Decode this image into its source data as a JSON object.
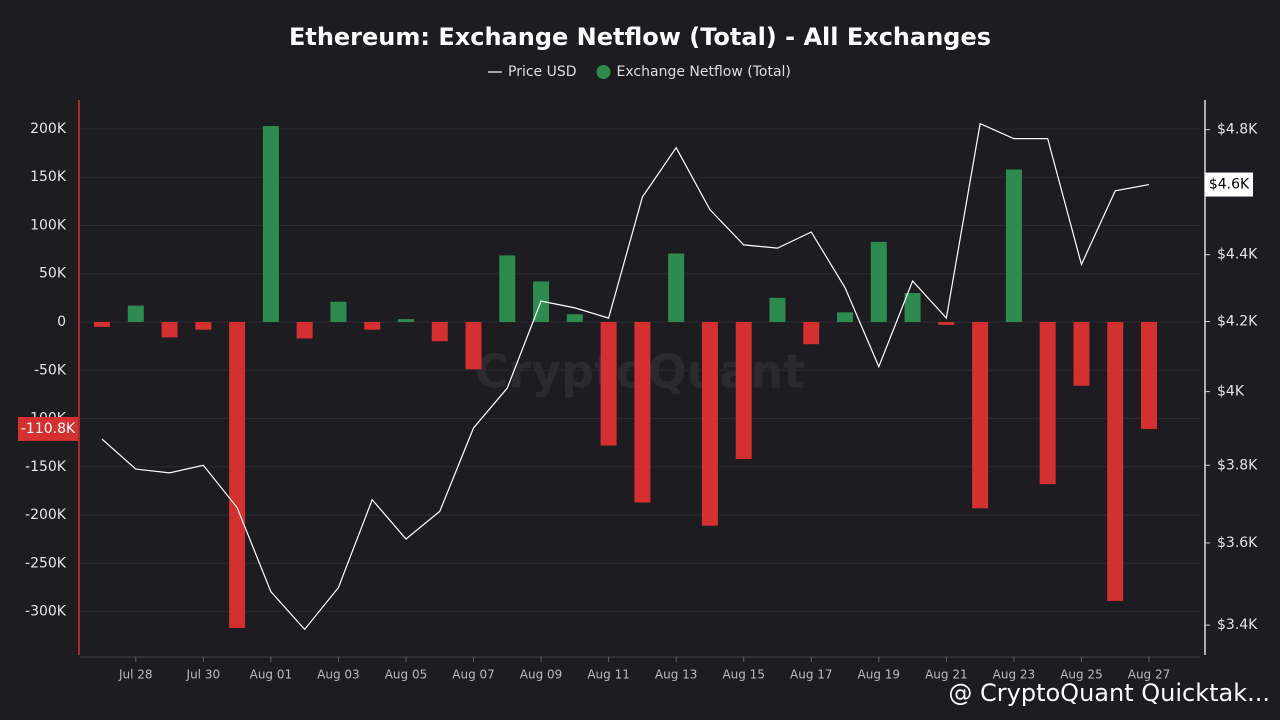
{
  "chart_data": {
    "type": "bar",
    "title": "Ethereum: Exchange Netflow (Total) - All Exchanges",
    "watermark": "CryptoQuant",
    "footer": "@ CryptoQuant Quicktak...",
    "categories": [
      null,
      "Jul 28",
      null,
      "Jul 30",
      null,
      "Aug 01",
      null,
      "Aug 03",
      null,
      "Aug 05",
      null,
      "Aug 07",
      null,
      "Aug 09",
      null,
      "Aug 11",
      null,
      "Aug 13",
      null,
      "Aug 15",
      null,
      "Aug 17",
      null,
      "Aug 19",
      null,
      "Aug 21",
      null,
      "Aug 23",
      null,
      "Aug 25",
      null,
      "Aug 27"
    ],
    "series": [
      {
        "name": "Exchange Netflow (Total)",
        "type": "bar",
        "positive_color": "#2e8b4f",
        "negative_color": "#d3302f",
        "legend_color": "#2e8b4f",
        "values": [
          -5000,
          17000,
          -16000,
          -8000,
          -317000,
          203000,
          -17000,
          21000,
          -8000,
          3000,
          -20000,
          -49000,
          69000,
          42000,
          8000,
          -128000,
          -187000,
          71000,
          -211000,
          -142000,
          25000,
          -23000,
          10000,
          83000,
          30000,
          -3000,
          -193000,
          158000,
          -168000,
          -66000,
          -289000,
          -110800
        ],
        "value_labels": [
          null,
          null,
          null,
          null,
          null,
          null,
          null,
          null,
          null,
          null,
          null,
          null,
          null,
          null,
          null,
          null,
          null,
          null,
          null,
          null,
          null,
          null,
          null,
          null,
          null,
          null,
          null,
          null,
          null,
          null,
          null,
          "-110.8K"
        ]
      },
      {
        "name": "Price USD",
        "type": "line",
        "axis": "y2",
        "color": "#ffffff",
        "values": [
          3870,
          3790,
          3780,
          3800,
          3690,
          3480,
          3390,
          3490,
          3710,
          3610,
          3680,
          3900,
          4010,
          4260,
          4240,
          4210,
          4580,
          4740,
          4540,
          4430,
          4420,
          4470,
          4300,
          4070,
          4320,
          4210,
          4820,
          4770,
          4770,
          4370,
          4600,
          4620
        ],
        "value_labels": [
          null,
          null,
          null,
          null,
          null,
          null,
          null,
          null,
          null,
          null,
          null,
          null,
          null,
          null,
          null,
          null,
          null,
          null,
          null,
          null,
          null,
          null,
          null,
          null,
          null,
          null,
          null,
          null,
          null,
          null,
          null,
          "$4.6K"
        ]
      }
    ],
    "ylim": [
      -345000,
      230000
    ],
    "yticks": [
      {
        "value": 200000,
        "label": "200K"
      },
      {
        "value": 150000,
        "label": "150K"
      },
      {
        "value": 100000,
        "label": "100K"
      },
      {
        "value": 50000,
        "label": "50K"
      },
      0,
      {
        "value": -50000,
        "label": "-50K"
      },
      {
        "value": -100000,
        "label": "-100K"
      },
      {
        "value": -150000,
        "label": "-150K"
      },
      {
        "value": -200000,
        "label": "-200K"
      },
      {
        "value": -250000,
        "label": "-250K"
      },
      {
        "value": -300000,
        "label": "-300K"
      }
    ],
    "y2lim": [
      3330,
      4900
    ],
    "y2log": true,
    "y2ticks": [
      {
        "value": 4800,
        "label": "$4.8K"
      },
      {
        "value": 4400,
        "label": "$4.4K"
      },
      {
        "value": 4200,
        "label": "$4.2K"
      },
      {
        "value": 4000,
        "label": "$4K"
      },
      {
        "value": 3800,
        "label": "$3.8K"
      },
      {
        "value": 3600,
        "label": "$3.6K"
      },
      {
        "value": 3400,
        "label": "$3.4K"
      }
    ],
    "grid": true,
    "legend": "top"
  }
}
